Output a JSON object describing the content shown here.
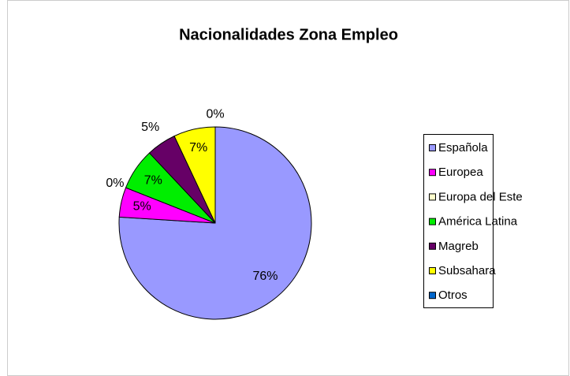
{
  "chart_data": {
    "type": "pie",
    "title": "Nacionalidades Zona Empleo",
    "categories": [
      "Española",
      "Europea",
      "Europa del Este",
      "América Latina",
      "Magreb",
      "Subsahara",
      "Otros"
    ],
    "values": [
      76,
      5,
      0,
      7,
      5,
      7,
      0
    ],
    "value_labels": [
      "76%",
      "5%",
      "0%",
      "7%",
      "5%",
      "7%",
      "0%"
    ],
    "colors": [
      "#9999ff",
      "#ff00ff",
      "#ffffcc",
      "#00ee00",
      "#660066",
      "#ffff00",
      "#0066cc"
    ],
    "legend": "right"
  }
}
